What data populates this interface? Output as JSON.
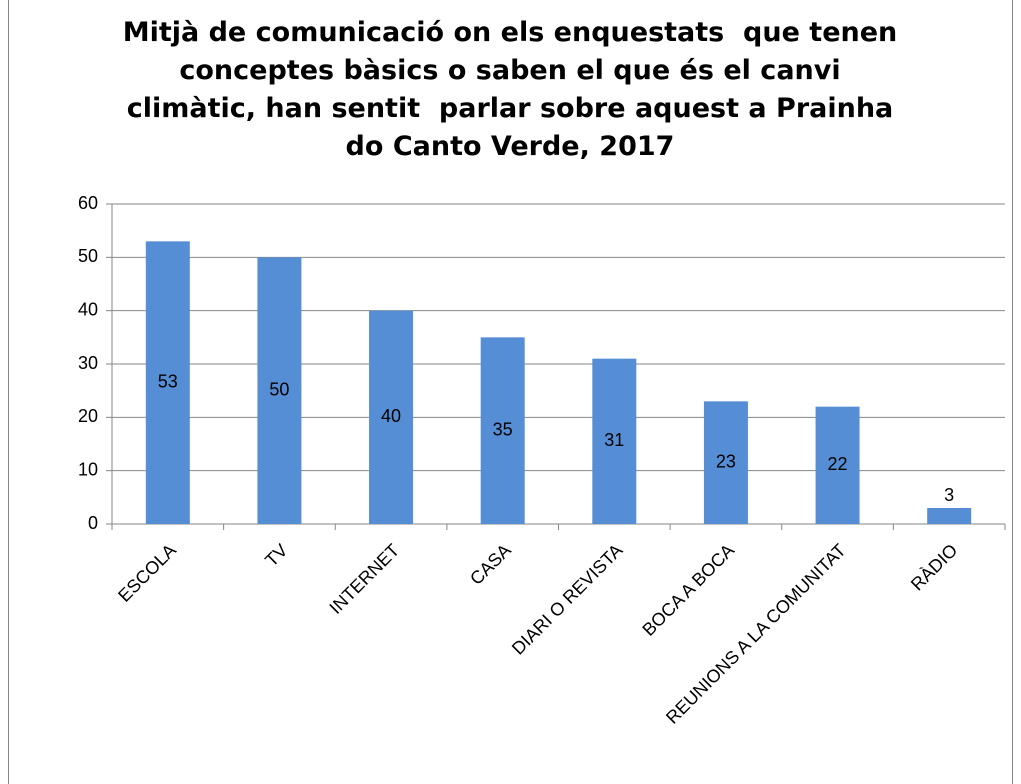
{
  "chart_data": {
    "type": "bar",
    "title": "Mitjà de comunicació on els enquestats  que tenen conceptes bàsics o saben el que és el canvi climàtic, han sentit  parlar sobre aquest a Prainha do Canto Verde, 2017",
    "categories": [
      "ESCOLA",
      "TV",
      "INTERNET",
      "CASA",
      "DIARI O REVISTA",
      "BOCA A BOCA",
      "REUNIONS A LA COMUNITAT",
      "RÀDIO"
    ],
    "values": [
      53,
      50,
      40,
      35,
      31,
      23,
      22,
      3
    ],
    "color": "#558ed5",
    "ylim": [
      0,
      60
    ],
    "yticks": [
      0,
      10,
      20,
      30,
      40,
      50,
      60
    ],
    "grid": true
  }
}
